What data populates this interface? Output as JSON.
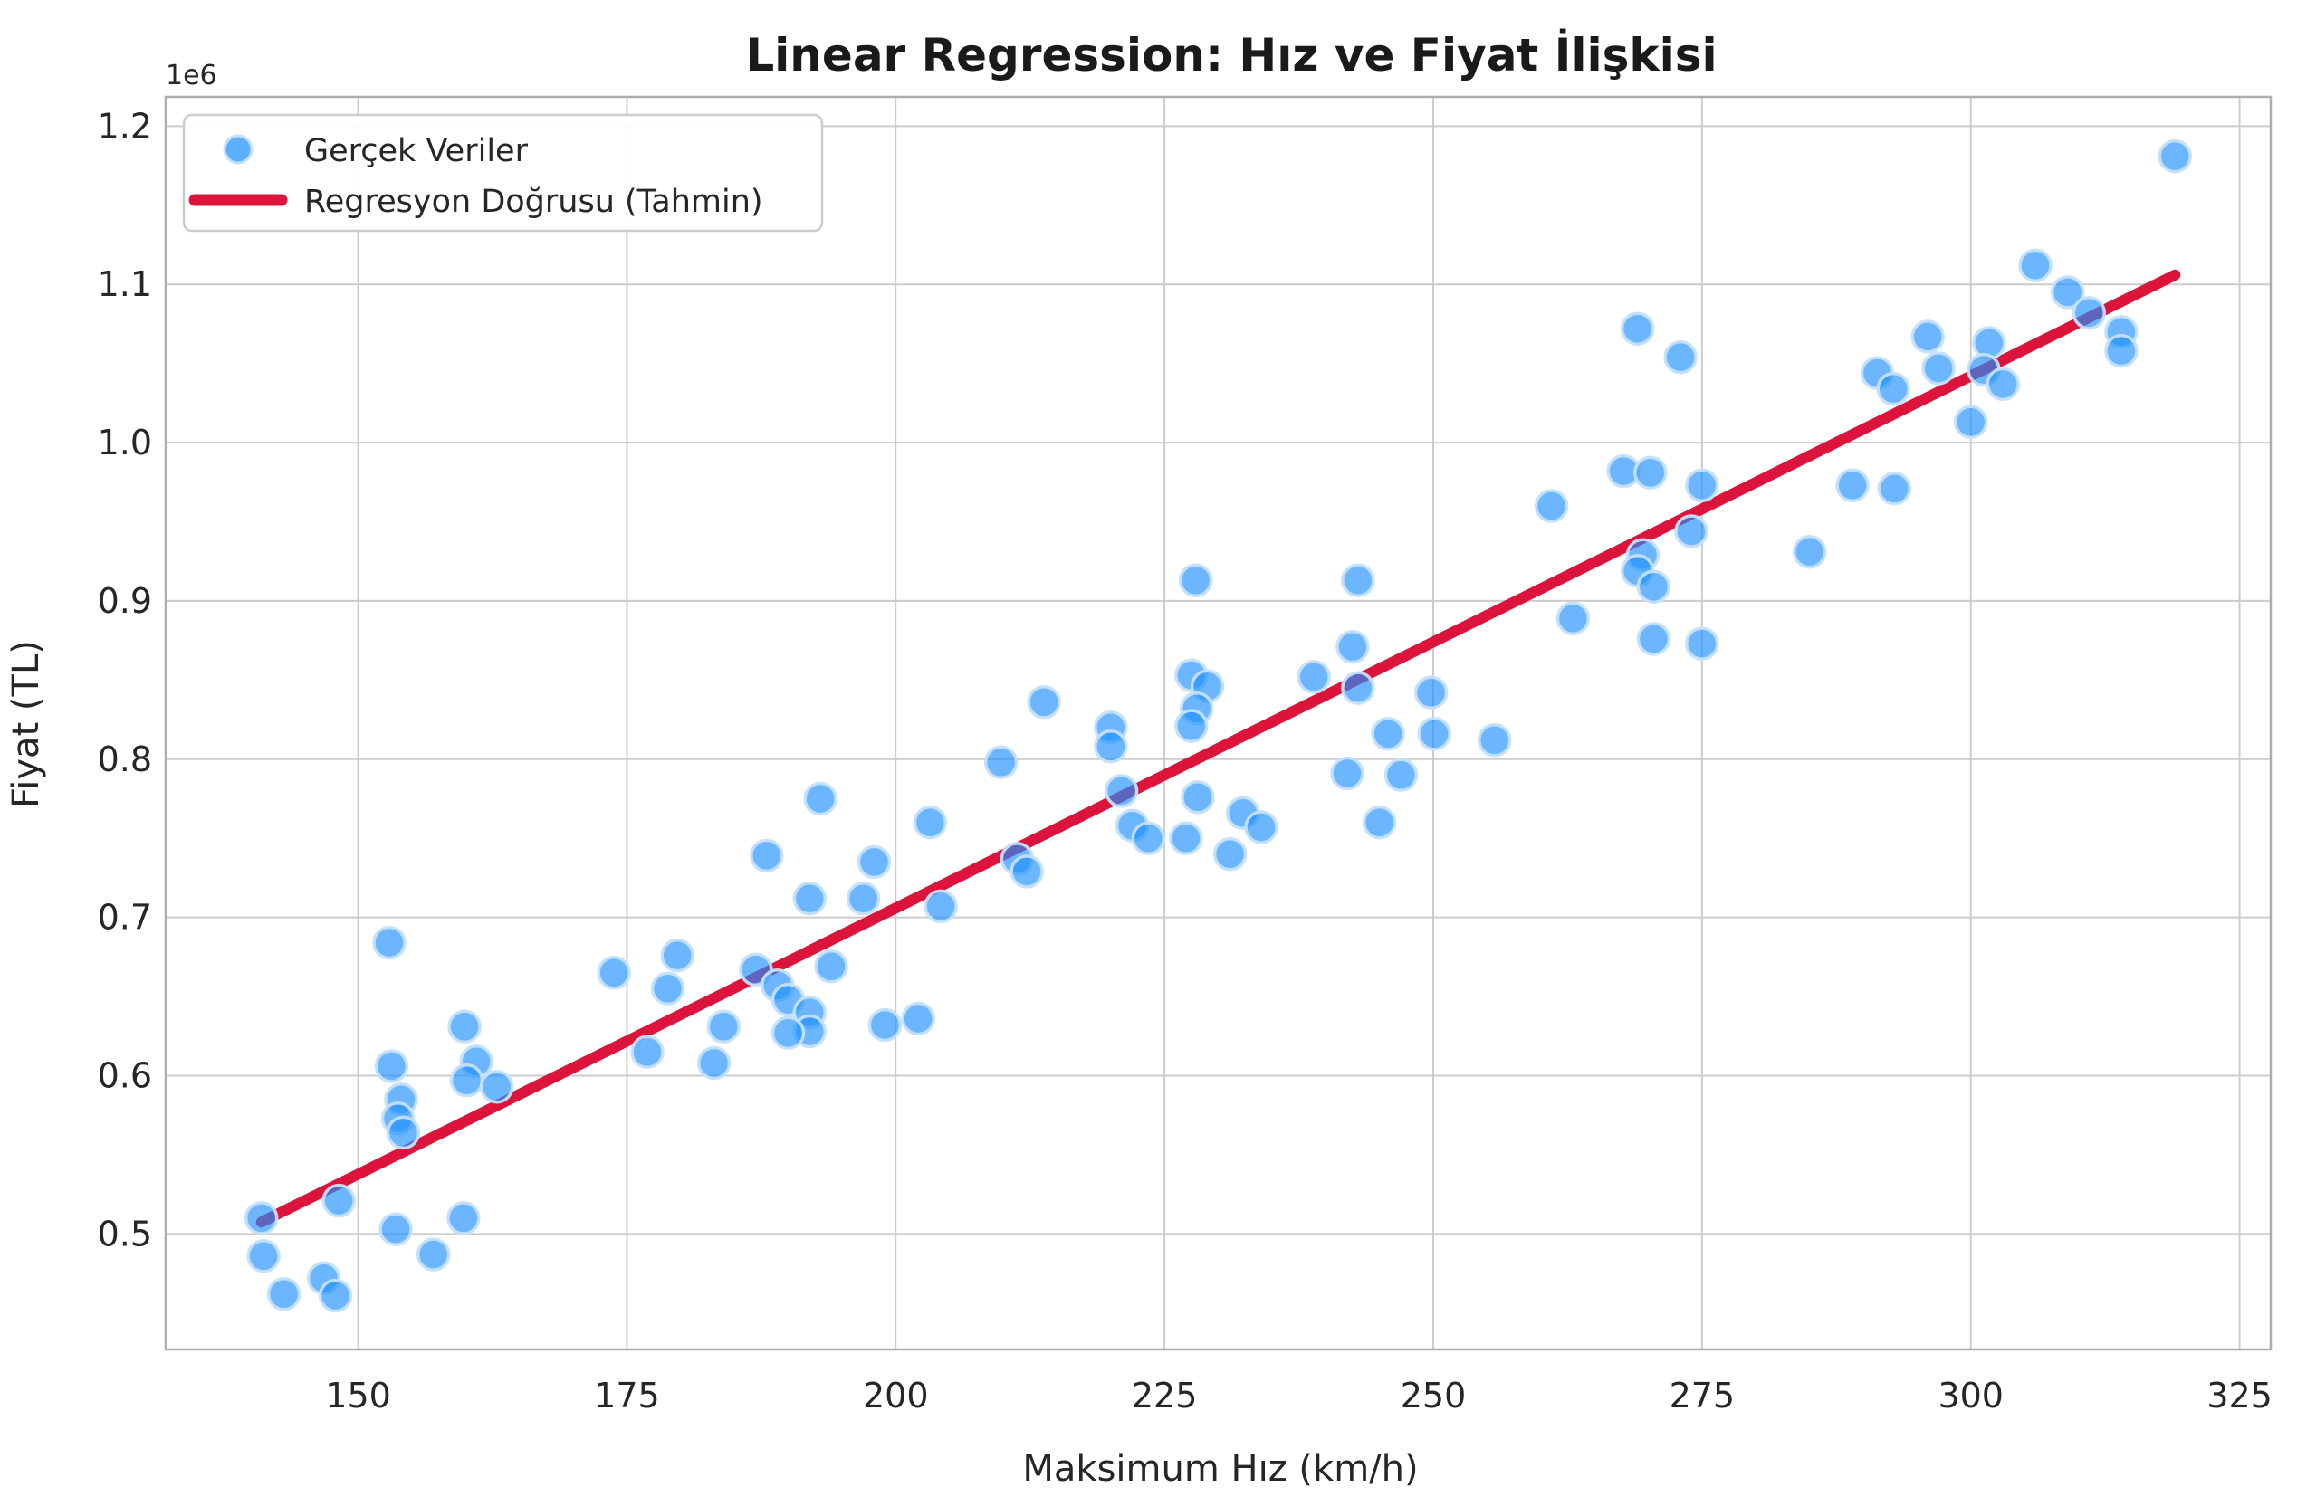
{
  "title": "Linear Regression: Hız ve Fiyat İlişkisi",
  "xlabel": "Maksimum Hız (km/h)",
  "ylabel": "Fiyat (TL)",
  "offset_text": "1e6",
  "legend": {
    "scatter_label": "Gerçek Veriler",
    "line_label": "Regresyon Doğrusu (Tahmin)"
  },
  "colors": {
    "scatter_fill": "#1E90FF",
    "scatter_edge": "#C4E0FA",
    "regression_line": "#DC143C",
    "grid": "#CCCCCC",
    "spine": "#ADADAD",
    "tick_text": "#262626",
    "title_text": "#1A1A1A"
  },
  "chart_data": {
    "type": "scatter",
    "title": "Linear Regression: Hız ve Fiyat İlişkisi",
    "xlabel": "Maksimum Hız (km/h)",
    "ylabel": "Fiyat (TL)",
    "y_offset_multiplier": "1e6",
    "grid": true,
    "legend_position": "upper-left",
    "xlim": [
      132.1,
      327.9
    ],
    "ylim": [
      427000,
      1218500
    ],
    "xticks": [
      150,
      175,
      200,
      225,
      250,
      275,
      300,
      325
    ],
    "yticks": [
      500000,
      600000,
      700000,
      800000,
      900000,
      1000000,
      1100000,
      1200000
    ],
    "ytick_labels": [
      "0.5",
      "0.6",
      "0.7",
      "0.8",
      "0.9",
      "1.0",
      "1.1",
      "1.2"
    ],
    "series": [
      {
        "name": "Gerçek Veriler",
        "type": "scatter",
        "points": [
          [
            141.0,
            510000
          ],
          [
            141.2,
            486000
          ],
          [
            143.1,
            462000
          ],
          [
            146.8,
            472000
          ],
          [
            147.9,
            461000
          ],
          [
            148.2,
            521000
          ],
          [
            153.5,
            503000
          ],
          [
            157.0,
            487000
          ],
          [
            159.8,
            510000
          ],
          [
            152.9,
            684000
          ],
          [
            153.1,
            606000
          ],
          [
            154.0,
            585000
          ],
          [
            153.7,
            573000
          ],
          [
            154.2,
            564000
          ],
          [
            159.9,
            631000
          ],
          [
            161.0,
            609000
          ],
          [
            160.1,
            597000
          ],
          [
            162.9,
            593000
          ],
          [
            173.8,
            665000
          ],
          [
            179.7,
            676000
          ],
          [
            178.8,
            655000
          ],
          [
            176.9,
            615000
          ],
          [
            184.0,
            631000
          ],
          [
            183.1,
            608000
          ],
          [
            187.0,
            667000
          ],
          [
            189.0,
            657000
          ],
          [
            190.0,
            648000
          ],
          [
            192.0,
            640000
          ],
          [
            192.0,
            628000
          ],
          [
            190.0,
            627000
          ],
          [
            194.0,
            669000
          ],
          [
            188.0,
            739000
          ],
          [
            193.0,
            775000
          ],
          [
            192.0,
            712000
          ],
          [
            197.0,
            712000
          ],
          [
            198.0,
            735000
          ],
          [
            199.0,
            632000
          ],
          [
            202.1,
            636000
          ],
          [
            203.2,
            760000
          ],
          [
            204.2,
            707000
          ],
          [
            209.8,
            798000
          ],
          [
            213.8,
            836000
          ],
          [
            211.3,
            737000
          ],
          [
            212.2,
            729000
          ],
          [
            220.0,
            820000
          ],
          [
            220.0,
            808000
          ],
          [
            221.0,
            780000
          ],
          [
            222.0,
            758000
          ],
          [
            223.5,
            750000
          ],
          [
            227.0,
            750000
          ],
          [
            228.1,
            776000
          ],
          [
            231.1,
            740000
          ],
          [
            227.5,
            853000
          ],
          [
            229.0,
            846000
          ],
          [
            228.0,
            832000
          ],
          [
            227.5,
            821000
          ],
          [
            227.9,
            913000
          ],
          [
            232.3,
            766000
          ],
          [
            234.0,
            757000
          ],
          [
            238.9,
            852000
          ],
          [
            242.5,
            871000
          ],
          [
            243.0,
            845000
          ],
          [
            243.0,
            913000
          ],
          [
            242.0,
            791000
          ],
          [
            247.0,
            790000
          ],
          [
            245.0,
            760000
          ],
          [
            245.8,
            816000
          ],
          [
            249.8,
            842000
          ],
          [
            250.1,
            816000
          ],
          [
            255.7,
            812000
          ],
          [
            261.0,
            960000
          ],
          [
            263.0,
            889000
          ],
          [
            267.7,
            982000
          ],
          [
            270.2,
            981000
          ],
          [
            275.0,
            973000
          ],
          [
            269.0,
            1072000
          ],
          [
            273.0,
            1054000
          ],
          [
            269.5,
            929000
          ],
          [
            269.0,
            919000
          ],
          [
            270.5,
            909000
          ],
          [
            274.0,
            944000
          ],
          [
            270.5,
            876000
          ],
          [
            275.0,
            873000
          ],
          [
            285.0,
            931000
          ],
          [
            289.0,
            973000
          ],
          [
            292.9,
            971000
          ],
          [
            291.3,
            1044000
          ],
          [
            292.8,
            1034000
          ],
          [
            296.0,
            1067000
          ],
          [
            297.0,
            1047000
          ],
          [
            300.0,
            1013000
          ],
          [
            301.7,
            1063000
          ],
          [
            301.2,
            1046000
          ],
          [
            303.0,
            1037000
          ],
          [
            306.0,
            1112000
          ],
          [
            309.0,
            1095000
          ],
          [
            311.0,
            1082000
          ],
          [
            314.0,
            1070000
          ],
          [
            314.0,
            1058000
          ],
          [
            319.0,
            1181000
          ]
        ]
      },
      {
        "name": "Regresyon Doğrusu (Tahmin)",
        "type": "line",
        "points": [
          [
            141.0,
            507500
          ],
          [
            319.0,
            1106000
          ]
        ]
      }
    ]
  }
}
